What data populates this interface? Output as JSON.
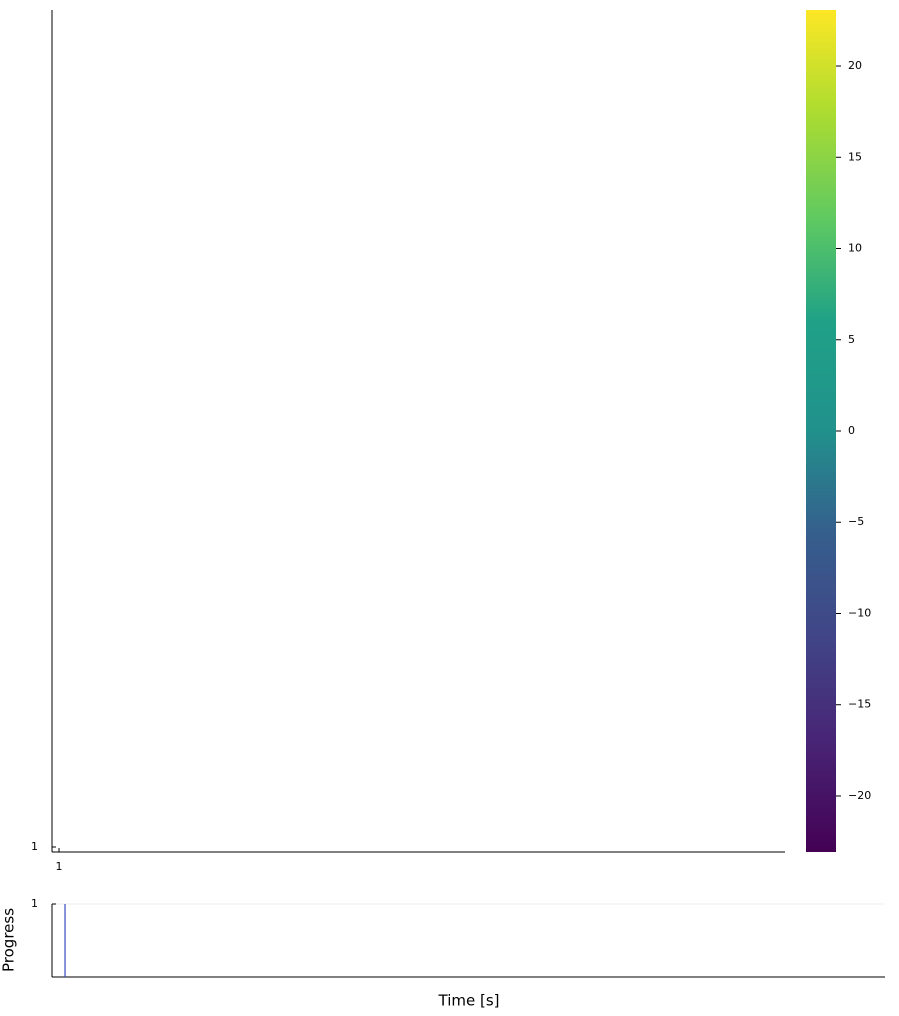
{
  "chart_data": [
    {
      "type": "heatmap",
      "xlim": [
        0.5,
        52.86
      ],
      "xticks": [
        1
      ],
      "ylim": [
        0.5,
        84.7
      ],
      "yticks": [
        1
      ],
      "colorbar": {
        "clim": [
          -23.07,
          23.07
        ],
        "ticks": [
          {
            "value": -20,
            "label": "−20"
          },
          {
            "value": -15,
            "label": "−15"
          },
          {
            "value": -10,
            "label": "−10"
          },
          {
            "value": -5,
            "label": "−5"
          },
          0,
          5,
          10,
          15,
          20
        ]
      }
    },
    {
      "type": "line",
      "xlabel": "Time [s]",
      "ylabel": "Progress",
      "x": [
        1,
        1
      ],
      "values": [
        0,
        1
      ],
      "color": "#3b4cc0",
      "xlim": [
        0,
        64
      ],
      "ylim": [
        0,
        1
      ],
      "yticks": [
        1
      ],
      "grid": true
    }
  ]
}
